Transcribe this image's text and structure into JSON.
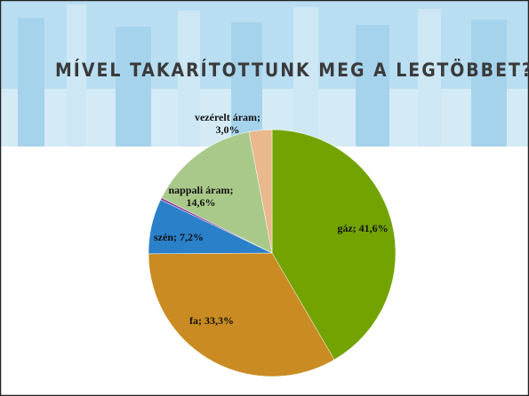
{
  "chart_data": {
    "type": "pie",
    "title": "MÍVEL TAKARÍTOTTUNK MEG A LEGTÖBBET?",
    "values": [
      41.6,
      33.3,
      7.2,
      0.3,
      14.6,
      3.0
    ],
    "value_labels": [
      "gáz; 41,6%",
      "fa; 33,3%",
      "szén; 7,2%",
      null,
      "nappali áram; 14,6%",
      "vezérelt áram; 3,0%"
    ],
    "colors": [
      "#72a300",
      "#c98b22",
      "#2a80c9",
      "#8a3fa0",
      "#a9c98a",
      "#e9b88c"
    ]
  }
}
